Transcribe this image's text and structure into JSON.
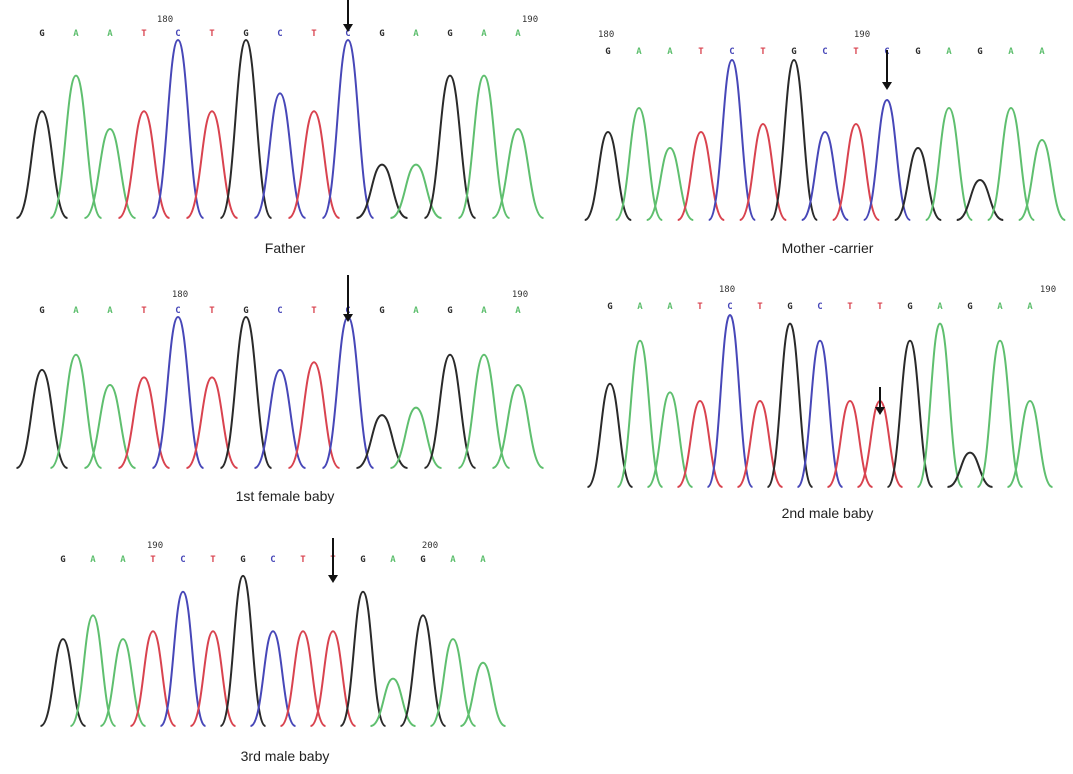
{
  "colors": {
    "G": "#2a2a2a",
    "A": "#5fbf6f",
    "T": "#d9434f",
    "C": "#4747b8",
    "arrow": "#111111"
  },
  "panels": [
    {
      "caption": "Father",
      "seq": "GAATCTGCTCGAGAA",
      "pos": {
        "start": "180",
        "end": "190"
      },
      "arrow_index": 9
    },
    {
      "caption": "Mother -carrier",
      "seq": "GAATCTGCTCGAGAA",
      "pos": {
        "start": "180",
        "end": "190"
      },
      "arrow_index": 9
    },
    {
      "caption": "1st female baby",
      "seq": "GAATCTGCTCGAGAA",
      "pos": {
        "start": "180",
        "end": "190"
      },
      "arrow_index": 9
    },
    {
      "caption": "2nd male baby",
      "seq": "GAATCTGCTTGAGAA",
      "pos": {
        "start": "180",
        "end": "190"
      },
      "arrow_index": 9
    },
    {
      "caption": "3rd male baby",
      "seq": "GAATCTGCTTGAGAA",
      "pos": {
        "start": "190",
        "end": "200"
      },
      "arrow_index": 9
    }
  ]
}
